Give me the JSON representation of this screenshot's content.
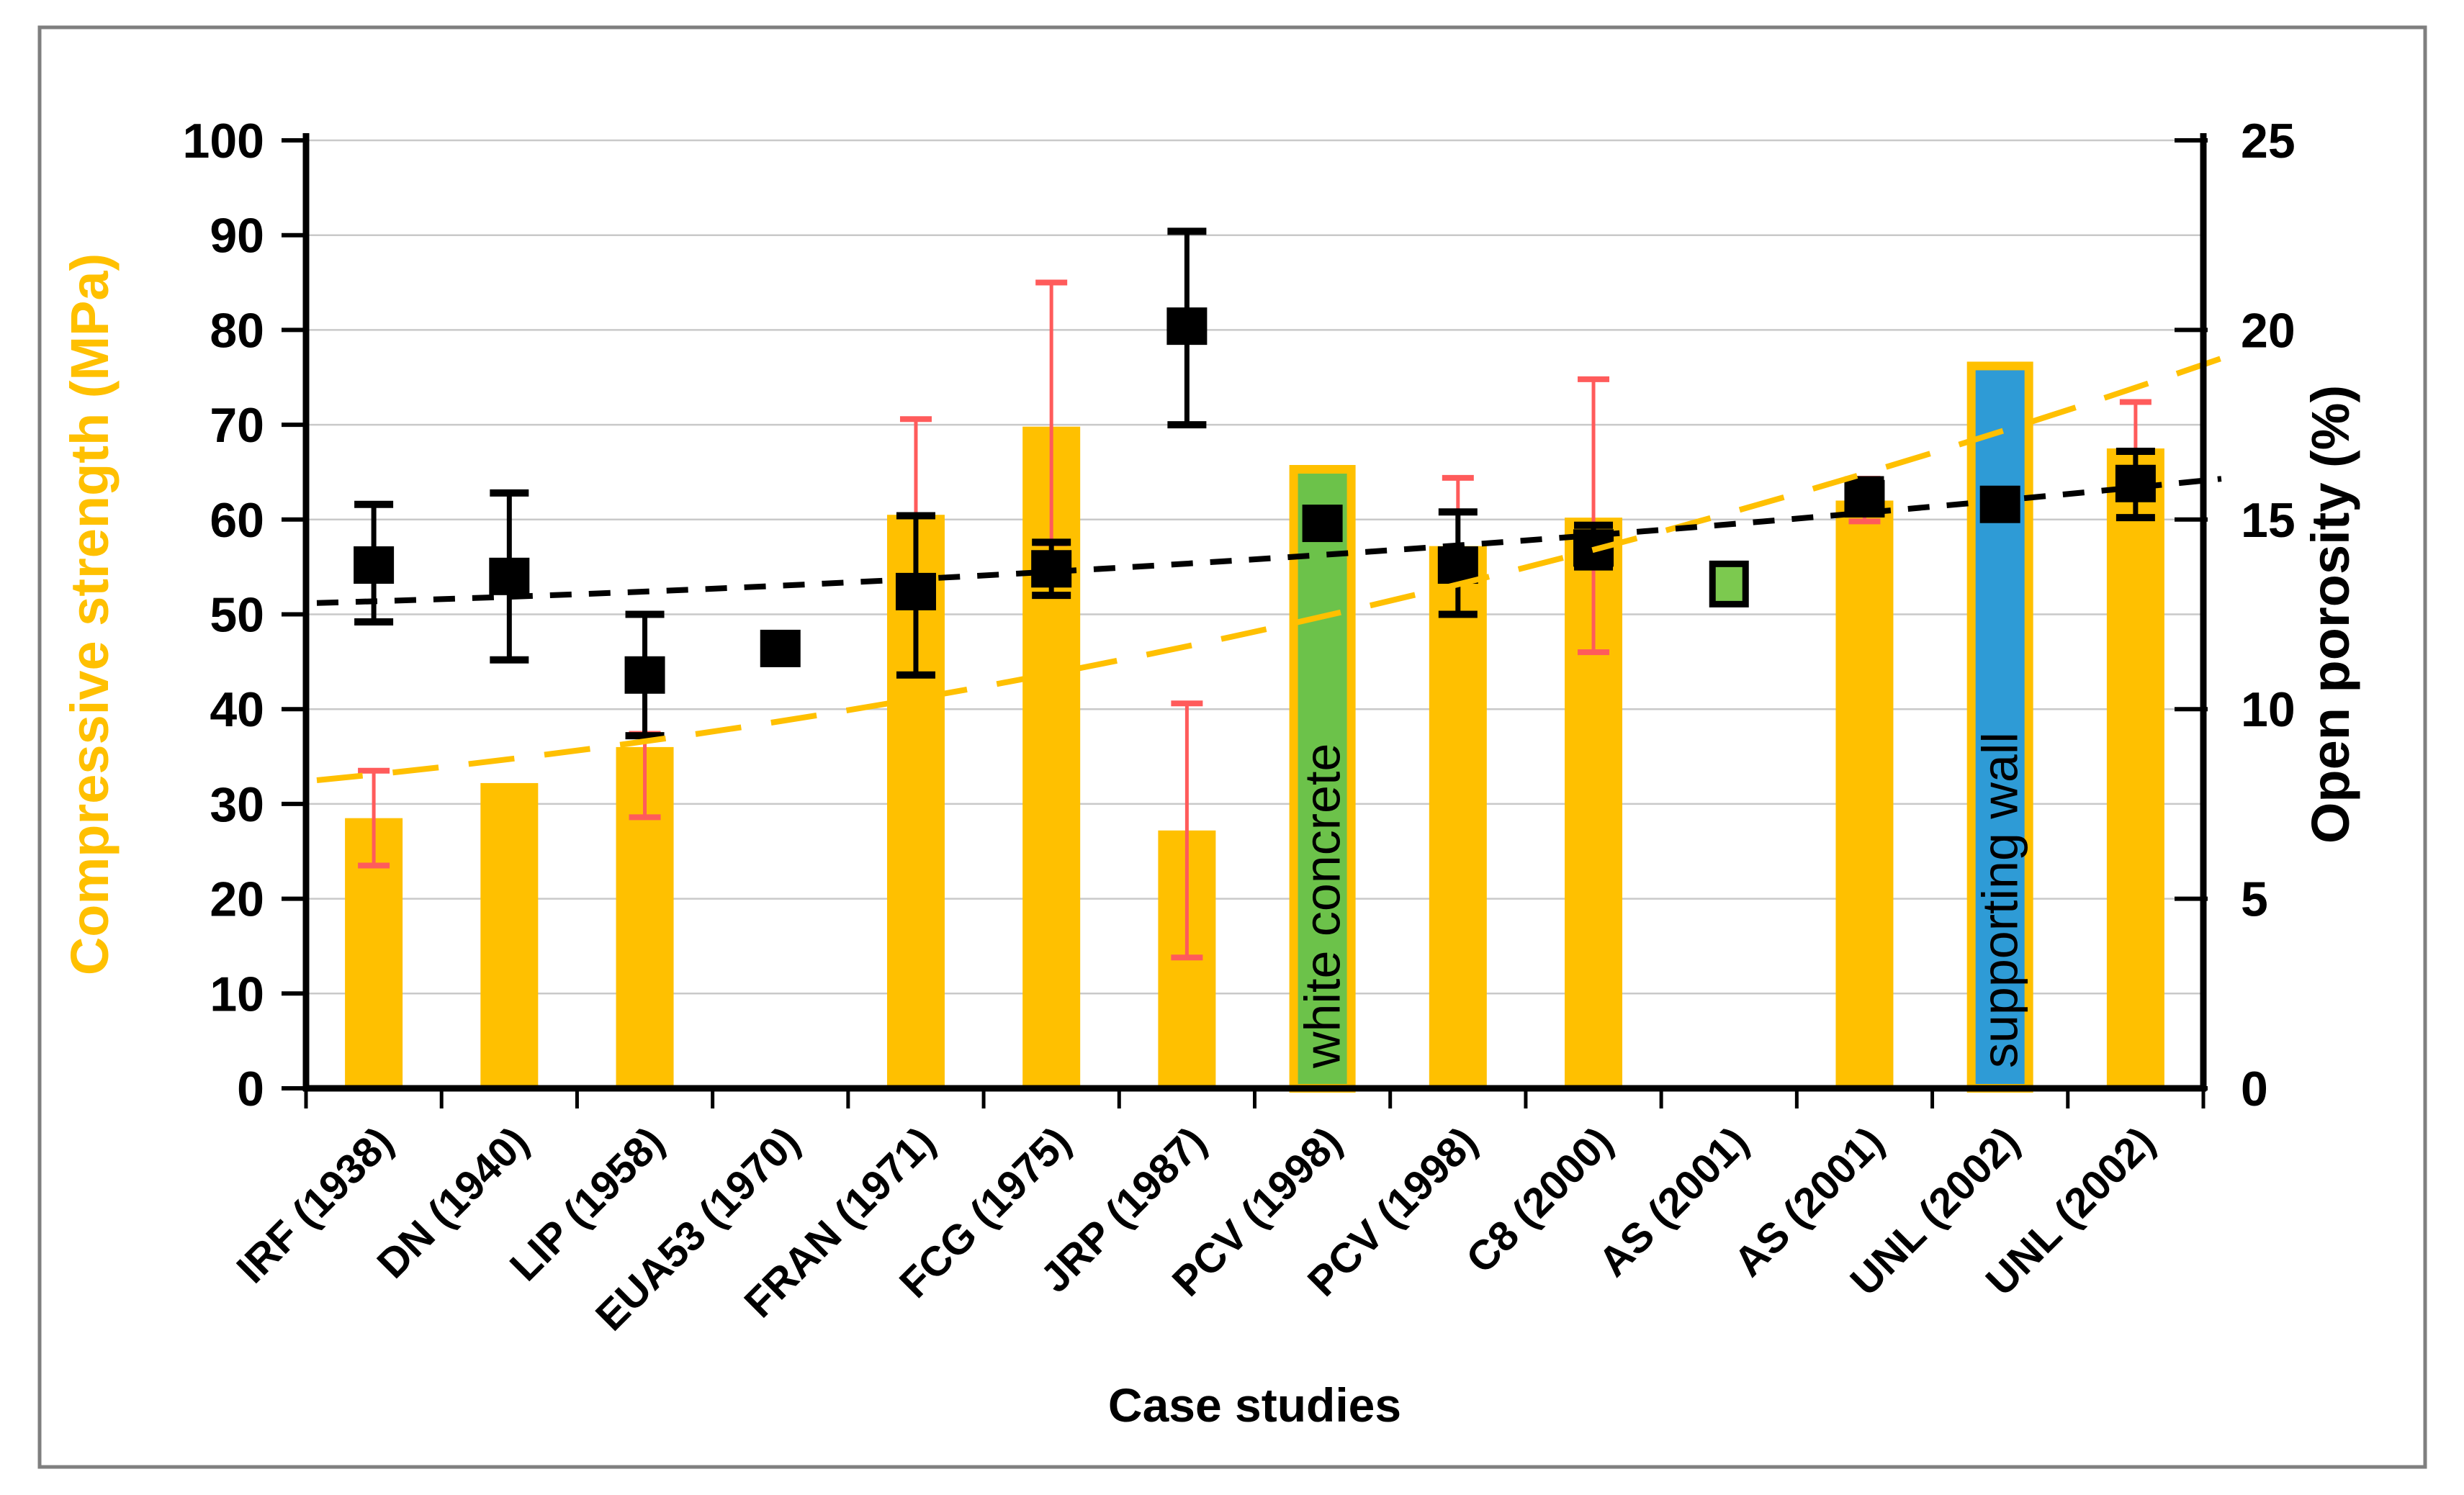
{
  "figure": {
    "background": "#FFFFFF",
    "frame_color": "#7F7F7F"
  },
  "palette": {
    "bar_yellow": "#FFC000",
    "bar_green": "#6CC24A",
    "bar_blue": "#2E9BD6",
    "marker_black": "#000000",
    "marker_green_fill": "#7CC94F",
    "bar_error_red": "#FF5B5B",
    "gridline": "#C9C9C9",
    "axis_black": "#000000"
  },
  "chart_data": {
    "type": "bar",
    "title": "",
    "xlabel": "Case studies",
    "grid": true,
    "left_axis": {
      "label": "Compressive strength (MPa)",
      "color": "#FFC000",
      "min": 0,
      "max": 100,
      "step": 10,
      "ticks": [
        0,
        10,
        20,
        30,
        40,
        50,
        60,
        70,
        80,
        90,
        100
      ]
    },
    "right_axis": {
      "label": "Open porosity (%)",
      "color": "#000000",
      "min": 0,
      "max": 25,
      "step": 5,
      "ticks": [
        0,
        5,
        10,
        15,
        20,
        25
      ]
    },
    "categories": [
      "IRF (1938)",
      "DN (1940)",
      "LIP (1958)",
      "EUA53 (1970)",
      "FRAN (1971)",
      "FCG (1975)",
      "JRP (1987)",
      "PCV (1998)",
      "PCV (1998)",
      "C8 (2000)",
      "AS (2001)",
      "AS (2001)",
      "UNL (2002)",
      "UNL (2002)"
    ],
    "series": [
      {
        "name": "Compressive strength (MPa)",
        "type": "bar",
        "axis": "left",
        "values": [
          28.5,
          32.2,
          36.0,
          null,
          60.5,
          69.8,
          27.2,
          65.3,
          57.2,
          60.2,
          null,
          62.0,
          76.2,
          67.5
        ],
        "errors": [
          [
            23.5,
            33.5
          ],
          null,
          [
            28.6,
            37.4
          ],
          null,
          [
            51.0,
            70.6
          ],
          [
            57.5,
            85.0
          ],
          [
            13.8,
            40.6
          ],
          null,
          [
            50.0,
            64.4
          ],
          [
            46.0,
            74.8
          ],
          null,
          [
            59.8,
            64.3
          ],
          null,
          [
            60.2,
            72.4
          ]
        ],
        "bar_styles": [
          "yellow",
          "yellow",
          "yellow",
          null,
          "yellow",
          "yellow",
          "yellow",
          "green",
          "yellow",
          "yellow",
          null,
          "yellow",
          "blue",
          "yellow"
        ],
        "bar_annotations": [
          null,
          null,
          null,
          null,
          null,
          null,
          null,
          "white concrete",
          null,
          null,
          null,
          null,
          "supporting wall",
          null
        ]
      },
      {
        "name": "Open porosity (%)",
        "type": "scatter",
        "axis": "right",
        "marker": "square",
        "values": [
          13.8,
          13.5,
          10.9,
          11.6,
          13.1,
          13.7,
          20.1,
          14.9,
          13.8,
          14.25,
          13.3,
          15.55,
          15.4,
          15.95
        ],
        "errors": [
          [
            12.3,
            15.4
          ],
          [
            11.3,
            15.7
          ],
          [
            9.3,
            12.5
          ],
          null,
          [
            10.9,
            15.1
          ],
          [
            13.0,
            14.4
          ],
          [
            17.5,
            22.6
          ],
          null,
          [
            12.5,
            15.2
          ],
          [
            13.75,
            14.85
          ],
          null,
          [
            15.15,
            16.05
          ],
          null,
          [
            15.05,
            16.8
          ]
        ],
        "marker_styles": [
          "black",
          "black",
          "black",
          "black",
          "black",
          "black",
          "black",
          "black",
          "black",
          "black",
          "green",
          "black",
          "black",
          "black"
        ]
      }
    ],
    "trendlines": [
      {
        "name": "strength-trend",
        "color": "#FFC000",
        "style": "dashed",
        "axis": "left",
        "points_mpa": [
          32.5,
          48.5,
          77.0
        ]
      },
      {
        "name": "porosity-trend",
        "color": "#000000",
        "style": "dashed",
        "axis": "left",
        "points_mpa": [
          51.2,
          55.9,
          64.3
        ]
      }
    ]
  }
}
